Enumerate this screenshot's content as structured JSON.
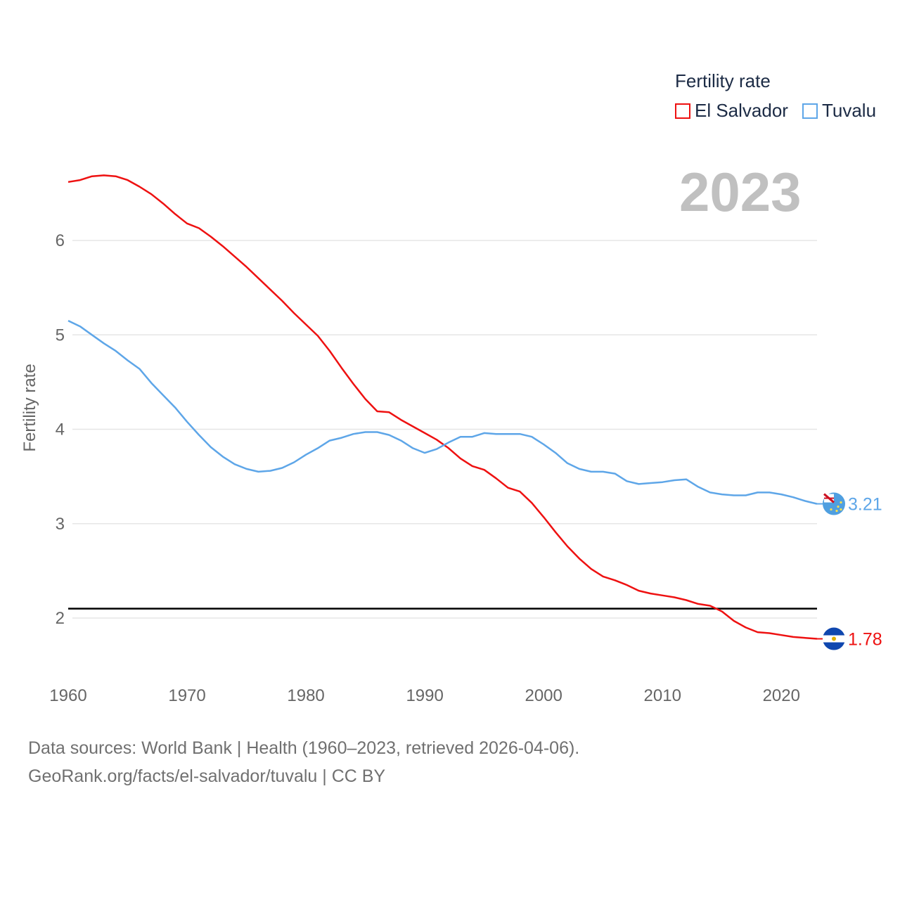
{
  "legend": {
    "title": "Fertility rate",
    "items": [
      {
        "name": "El Salvador",
        "color": "#ee1111"
      },
      {
        "name": "Tuvalu",
        "color": "#5ea6e8"
      }
    ]
  },
  "year_label": "2023",
  "source": {
    "line1": "Data sources: World Bank | Health (1960–2023, retrieved 2026-04-06).",
    "line2": "GeoRank.org/facts/el-salvador/tuvalu | CC BY"
  },
  "chart_data": {
    "type": "line",
    "title": "Fertility rate",
    "xlabel": "",
    "ylabel": "Fertility rate",
    "xlim": [
      1960,
      2023
    ],
    "ylim": [
      1.5,
      6.9
    ],
    "x_ticks": [
      1960,
      1970,
      1980,
      1990,
      2000,
      2010,
      2020
    ],
    "y_ticks": [
      2,
      3,
      4,
      5,
      6
    ],
    "reference_line": 2.1,
    "x": [
      1960,
      1961,
      1962,
      1963,
      1964,
      1965,
      1966,
      1967,
      1968,
      1969,
      1970,
      1971,
      1972,
      1973,
      1974,
      1975,
      1976,
      1977,
      1978,
      1979,
      1980,
      1981,
      1982,
      1983,
      1984,
      1985,
      1986,
      1987,
      1988,
      1989,
      1990,
      1991,
      1992,
      1993,
      1994,
      1995,
      1996,
      1997,
      1998,
      1999,
      2000,
      2001,
      2002,
      2003,
      2004,
      2005,
      2006,
      2007,
      2008,
      2009,
      2010,
      2011,
      2012,
      2013,
      2014,
      2015,
      2016,
      2017,
      2018,
      2019,
      2020,
      2021,
      2022,
      2023
    ],
    "series": [
      {
        "name": "El Salvador",
        "color": "#ee1111",
        "end_label": "1.78",
        "values": [
          6.62,
          6.64,
          6.68,
          6.69,
          6.68,
          6.64,
          6.57,
          6.49,
          6.39,
          6.28,
          6.18,
          6.13,
          6.04,
          5.94,
          5.83,
          5.72,
          5.6,
          5.48,
          5.36,
          5.23,
          5.11,
          4.99,
          4.83,
          4.65,
          4.48,
          4.32,
          4.19,
          4.18,
          4.1,
          4.03,
          3.96,
          3.89,
          3.8,
          3.69,
          3.61,
          3.57,
          3.48,
          3.38,
          3.34,
          3.22,
          3.07,
          2.91,
          2.76,
          2.63,
          2.52,
          2.44,
          2.4,
          2.35,
          2.29,
          2.26,
          2.24,
          2.22,
          2.19,
          2.15,
          2.13,
          2.07,
          1.97,
          1.9,
          1.85,
          1.84,
          1.82,
          1.8,
          1.79,
          1.78
        ]
      },
      {
        "name": "Tuvalu",
        "color": "#5ea6e8",
        "end_label": "3.21",
        "values": [
          5.15,
          5.09,
          5.0,
          4.91,
          4.83,
          4.73,
          4.64,
          4.49,
          4.36,
          4.23,
          4.08,
          3.94,
          3.81,
          3.71,
          3.63,
          3.58,
          3.55,
          3.56,
          3.59,
          3.65,
          3.73,
          3.8,
          3.88,
          3.91,
          3.95,
          3.97,
          3.97,
          3.94,
          3.88,
          3.8,
          3.75,
          3.79,
          3.86,
          3.92,
          3.92,
          3.96,
          3.95,
          3.95,
          3.95,
          3.92,
          3.84,
          3.75,
          3.64,
          3.58,
          3.55,
          3.55,
          3.53,
          3.45,
          3.42,
          3.43,
          3.44,
          3.46,
          3.47,
          3.39,
          3.33,
          3.31,
          3.3,
          3.3,
          3.33,
          3.33,
          3.31,
          3.28,
          3.24,
          3.21
        ]
      }
    ]
  }
}
